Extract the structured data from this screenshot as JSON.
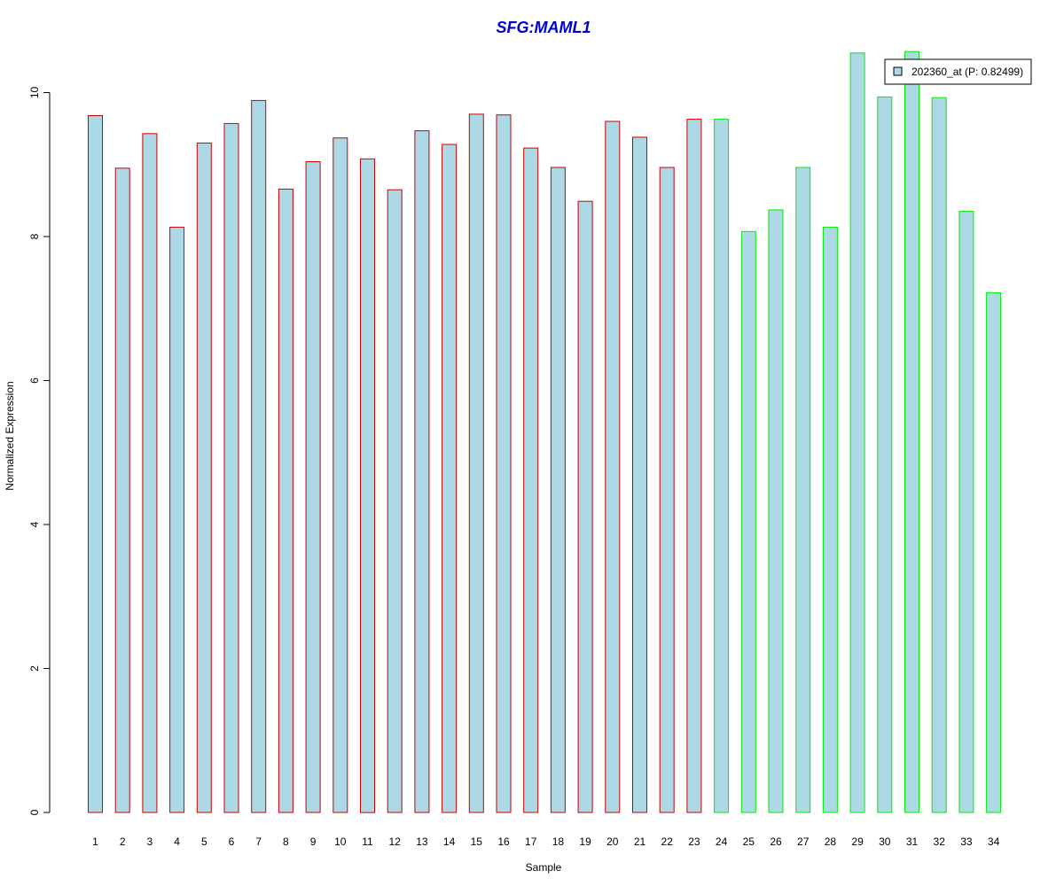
{
  "chart_data": {
    "type": "bar",
    "title": "SFG:MAML1",
    "xlabel": "Sample",
    "ylabel": "Normalized Expression",
    "ylim": [
      0,
      10.6
    ],
    "yticks": [
      "0",
      "2",
      "4",
      "6",
      "8",
      "10"
    ],
    "grid": false,
    "legend_position": "top-right",
    "legend_label": "202360_at (P: 0.82499)",
    "fill_color": "#add8e6",
    "title_color": "#0000cd",
    "group_colors": {
      "group1": "#cc0000",
      "group2": "#00ee00"
    },
    "categories": [
      "1",
      "2",
      "3",
      "4",
      "5",
      "6",
      "7",
      "8",
      "9",
      "10",
      "11",
      "12",
      "13",
      "14",
      "15",
      "16",
      "17",
      "18",
      "19",
      "20",
      "21",
      "22",
      "23",
      "24",
      "25",
      "26",
      "27",
      "28",
      "29",
      "30",
      "31",
      "32",
      "33",
      "34"
    ],
    "values": [
      9.68,
      8.95,
      9.43,
      8.13,
      9.3,
      9.57,
      9.89,
      8.66,
      9.04,
      9.37,
      9.08,
      8.65,
      9.47,
      9.28,
      9.7,
      9.69,
      9.23,
      8.96,
      8.49,
      9.6,
      9.38,
      8.96,
      9.63,
      9.63,
      8.07,
      8.37,
      8.96,
      8.13,
      10.55,
      9.94,
      10.57,
      9.93,
      8.35,
      7.22
    ],
    "groups": [
      "group1",
      "group1",
      "group1",
      "group1",
      "group1",
      "group1",
      "group1",
      "group1",
      "group1",
      "group1",
      "group1",
      "group1",
      "group1",
      "group1",
      "group1",
      "group1",
      "group1",
      "group1",
      "group1",
      "group1",
      "group1",
      "group1",
      "group1",
      "group2",
      "group2",
      "group2",
      "group2",
      "group2",
      "group2",
      "group2",
      "group2",
      "group2",
      "group2",
      "group2"
    ]
  }
}
